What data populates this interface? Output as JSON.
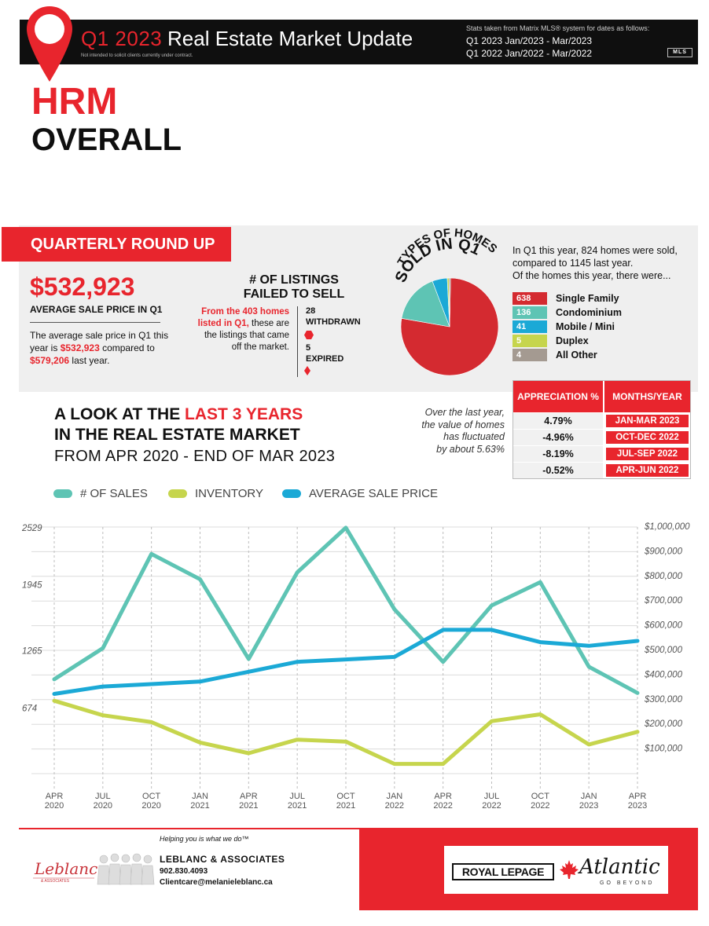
{
  "header": {
    "quarter_label": "Q1 2023",
    "title": "Real Estate Market Update",
    "disclaimer": "Not intended to solicit clients currently under contract.",
    "stats_note": "Stats taken from Matrix MLS® system for dates as follows:",
    "stats_q1_2023": "Q1 2023 Jan/2023 - Mar/2023",
    "stats_q1_2022": "Q1 2022 Jan/2022 - Mar/2022",
    "mls_logo_text": "MLS",
    "pin_icon": "map-pin-icon"
  },
  "region": {
    "name": "HRM",
    "area": "OVERALL"
  },
  "roundup": {
    "tag": "QUARTERLY ROUND UP",
    "avg_price": "$532,923",
    "avg_price_label": "AVERAGE SALE PRICE IN Q1",
    "avg_text_1": "The average sale price in Q1 this year is ",
    "avg_text_2": "$532,923",
    "avg_text_3": " compared to ",
    "avg_text_4": "$579,206",
    "avg_text_5": " last year.",
    "failed_title_1": "# OF LISTINGS",
    "failed_title_2": "FAILED TO SELL",
    "failed_text_red": "From the 403 homes listed in Q1,",
    "failed_text": "these are the listings that came off the market.",
    "withdrawn_num": "28",
    "withdrawn_label": "WITHDRAWN",
    "expired_num": "5",
    "expired_label": "EXPIRED"
  },
  "homes_sold": {
    "title_1": "TYPES OF HOMES",
    "title_2": "SOLD IN Q1",
    "text_1": "In Q1 this year, 824 homes were sold,",
    "text_2": "compared to 1145 last year.",
    "text_3": "Of the homes this year, there were...",
    "types": [
      {
        "count": "638",
        "label": "Single Family",
        "color": "#d42a30"
      },
      {
        "count": "136",
        "label": "Condominium",
        "color": "#5ec4b4"
      },
      {
        "count": "41",
        "label": "Mobile / Mini",
        "color": "#1ba9d6"
      },
      {
        "count": "5",
        "label": "Duplex",
        "color": "#c6d54d"
      },
      {
        "count": "4",
        "label": "All Other",
        "color": "#a49a91"
      }
    ]
  },
  "appreciation": {
    "col1": "APPRECIATION %",
    "col2": "MONTHS/YEAR",
    "rows": [
      {
        "pct": "4.79%",
        "period": "JAN-MAR 2023"
      },
      {
        "pct": "-4.96%",
        "period": "OCT-DEC 2022"
      },
      {
        "pct": "-8.19%",
        "period": "JUL-SEP 2022"
      },
      {
        "pct": "-0.52%",
        "period": "APR-JUN 2022"
      }
    ]
  },
  "look": {
    "line1_a": "A LOOK AT THE ",
    "line1_b": "LAST 3 YEARS",
    "line2": "IN THE REAL ESTATE MARKET",
    "line3": "FROM APR 2020 - END OF MAR 2023",
    "fluct_1": "Over the last year,",
    "fluct_2": "the value of homes",
    "fluct_3": "has fluctuated",
    "fluct_4": "by about 5.63%"
  },
  "colors": {
    "brand_red": "#e8252d",
    "sales": "#5ec4b4",
    "inventory": "#c6d54d",
    "avg_price": "#1ba9d6"
  },
  "chart_data": {
    "type": "line",
    "x_top": [
      "APR",
      "JUL",
      "OCT",
      "JAN",
      "APR",
      "JUL",
      "OCT",
      "JAN",
      "APR",
      "JUL",
      "OCT",
      "JAN",
      "APR"
    ],
    "x_bottom": [
      "2020",
      "2020",
      "2020",
      "2021",
      "2021",
      "2021",
      "2021",
      "2022",
      "2022",
      "2022",
      "2022",
      "2023",
      "2023"
    ],
    "left_ticks": [
      "2529",
      "1945",
      "1265",
      "674"
    ],
    "left_tick_values": [
      2529,
      1945,
      1265,
      674
    ],
    "right_ticks": [
      "$1,000,000",
      "$900,000",
      "$800,000",
      "$700,000",
      "$600,000",
      "$500,000",
      "$400,000",
      "$300,000",
      "$200,000",
      "$100,000"
    ],
    "right_tick_values": [
      1000000,
      900000,
      800000,
      700000,
      600000,
      500000,
      400000,
      300000,
      200000,
      100000
    ],
    "left_range": [
      0,
      2529
    ],
    "right_range": [
      0,
      1000000
    ],
    "grid": true,
    "legend_position": "top-left",
    "series": [
      {
        "name": "# OF SALES",
        "axis": "left",
        "color": "#5ec4b4",
        "values": [
          970,
          1290,
          2260,
          2000,
          1180,
          2070,
          2530,
          1690,
          1150,
          1730,
          1970,
          1100,
          830
        ]
      },
      {
        "name": "INVENTORY",
        "axis": "left",
        "color": "#c6d54d",
        "values": [
          750,
          600,
          530,
          320,
          210,
          350,
          330,
          100,
          100,
          540,
          610,
          300,
          430
        ]
      },
      {
        "name": "AVERAGE SALE PRICE",
        "axis": "right",
        "color": "#1ba9d6",
        "values": [
          320000,
          350000,
          360000,
          370000,
          410000,
          450000,
          460000,
          470000,
          580000,
          580000,
          530000,
          515000,
          535000
        ]
      }
    ]
  },
  "footer": {
    "tagline": "Helping you is what we do™",
    "agency_name": "LEBLANC & ASSOCIATES",
    "phone": "902.830.4093",
    "email": "Clientcare@melanieleblanc.ca",
    "logo_text": "Leblanc",
    "logo_sub": "& ASSOCIATES",
    "brand_1": "ROYAL LEPAGE",
    "brand_2": "Atlantic",
    "brand_3": "GO BEYOND"
  }
}
